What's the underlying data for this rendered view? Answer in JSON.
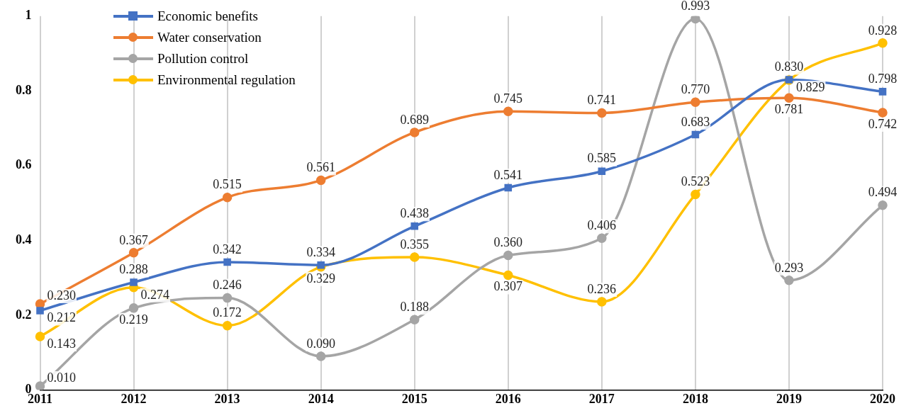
{
  "chart_data": {
    "type": "line",
    "categories": [
      "2011",
      "2012",
      "2013",
      "2014",
      "2015",
      "2016",
      "2017",
      "2018",
      "2019",
      "2020"
    ],
    "series": [
      {
        "name": "Economic benefits",
        "color": "#4472c4",
        "marker": "square",
        "values": [
          0.212,
          0.288,
          0.342,
          0.334,
          0.438,
          0.541,
          0.585,
          0.683,
          0.83,
          0.798
        ],
        "value_labels": [
          "0.212",
          "0.288",
          "0.342",
          "0.334",
          "0.438",
          "0.541",
          "0.585",
          "0.683",
          "0.830",
          "0.798"
        ]
      },
      {
        "name": "Water conservation",
        "color": "#ed7d31",
        "marker": "circle",
        "values": [
          0.23,
          0.367,
          0.515,
          0.561,
          0.689,
          0.745,
          0.741,
          0.77,
          0.781,
          0.742
        ],
        "value_labels": [
          "0.230",
          "0.367",
          "0.515",
          "0.561",
          "0.689",
          "0.745",
          "0.741",
          "0.770",
          "0.781",
          "0.742"
        ]
      },
      {
        "name": "Pollution control",
        "color": "#a5a5a5",
        "marker": "circle",
        "values": [
          0.01,
          0.219,
          0.246,
          0.09,
          0.188,
          0.36,
          0.406,
          0.993,
          0.293,
          0.494
        ],
        "value_labels": [
          "0.010",
          "0.219",
          "0.246",
          "0.090",
          "0.188",
          "0.360",
          "0.406",
          "0.993",
          "0.293",
          "0.494"
        ]
      },
      {
        "name": "Environmental regulation",
        "color": "#ffc000",
        "marker": "circle",
        "values": [
          0.143,
          0.274,
          0.172,
          0.329,
          0.355,
          0.307,
          0.236,
          0.523,
          0.829,
          0.928
        ],
        "value_labels": [
          "0.143",
          "0.274",
          "0.172",
          "0.329",
          "0.355",
          "0.307",
          "0.236",
          "0.523",
          "0.829",
          "0.928"
        ]
      }
    ],
    "ylim": [
      0,
      1
    ],
    "yticks": [
      0,
      0.2,
      0.4,
      0.6,
      0.8,
      1
    ],
    "grid": "x",
    "legend": "top left",
    "line_style": "solid"
  }
}
